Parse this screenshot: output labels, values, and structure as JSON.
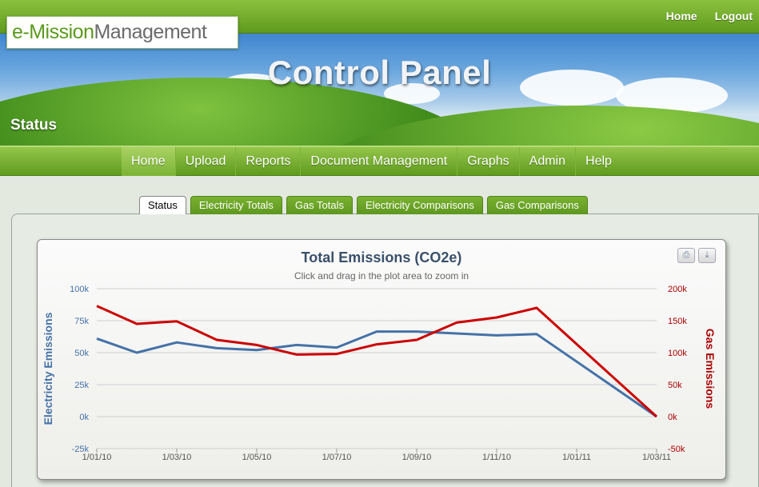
{
  "header": {
    "links": [
      "Home",
      "Logout"
    ],
    "logo_part1": "e-Mission",
    "logo_part2": "Management",
    "banner_title": "Control Panel",
    "section": "Status"
  },
  "nav": {
    "items": [
      "Home",
      "Upload",
      "Reports",
      "Document Management",
      "Graphs",
      "Admin",
      "Help"
    ],
    "active": "Home"
  },
  "tabs": {
    "items": [
      "Status",
      "Electricity Totals",
      "Gas Totals",
      "Electricity Comparisons",
      "Gas Comparisons"
    ],
    "active": "Status"
  },
  "chart_buttons": {
    "print_icon": "print-icon",
    "download_icon": "download-icon"
  },
  "chart_data": {
    "type": "line",
    "title": "Total Emissions (CO2e)",
    "subtitle": "Click and drag in the plot area to zoom in",
    "x": [
      "1/01/10",
      "1/02/10",
      "1/03/10",
      "1/04/10",
      "1/05/10",
      "1/06/10",
      "1/07/10",
      "1/08/10",
      "1/09/10",
      "1/10/10",
      "1/11/10",
      "1/12/10",
      "1/01/11",
      "1/02/11",
      "1/03/11"
    ],
    "x_tick_labels": [
      "1/01/10",
      "1/03/10",
      "1/05/10",
      "1/07/10",
      "1/09/10",
      "1/11/10",
      "1/01/11",
      "1/03/11"
    ],
    "left_axis": {
      "label": "Electricity Emissions",
      "ticks": [
        "100k",
        "75k",
        "50k",
        "25k",
        "0k",
        "-25k"
      ],
      "range": [
        -25000,
        100000
      ],
      "color": "#4572a7"
    },
    "right_axis": {
      "label": "Gas Emissions",
      "ticks": [
        "200k",
        "150k",
        "100k",
        "50k",
        "0k",
        "-50k"
      ],
      "range": [
        -50000,
        200000
      ],
      "color": "#aa0000"
    },
    "series": [
      {
        "name": "Electricity Emissions",
        "axis": "left",
        "color": "#4572a7",
        "values": [
          61000,
          50000,
          58000,
          53500,
          52000,
          56000,
          54000,
          66500,
          66500,
          65000,
          63500,
          64500,
          null,
          null,
          0
        ]
      },
      {
        "name": "Gas Emissions",
        "axis": "right",
        "color": "#cc0000",
        "values": [
          173000,
          145000,
          149000,
          120000,
          112000,
          97000,
          98000,
          113000,
          120000,
          147000,
          155000,
          170000,
          null,
          null,
          0
        ]
      }
    ]
  }
}
